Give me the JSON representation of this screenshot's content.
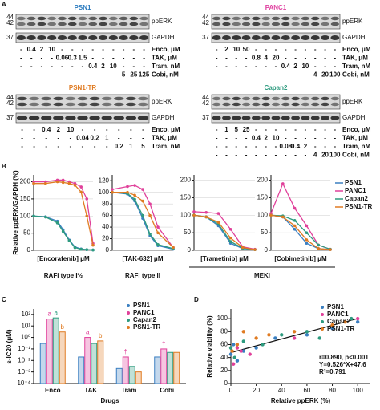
{
  "panel_labels": [
    "A",
    "B",
    "C",
    "D"
  ],
  "blots": [
    {
      "title": "PSN1",
      "color": "#2b7bbf",
      "markers_top": [
        "44",
        "42"
      ],
      "marker_bottom": "37",
      "bands": [
        "ppERK",
        "GAPDH"
      ],
      "rows": [
        {
          "label": "Enco, μM",
          "cells": [
            "-",
            "0.4",
            "2",
            "10",
            "-",
            "-",
            "-",
            "-",
            "-",
            "-",
            "-",
            "-",
            "-"
          ]
        },
        {
          "label": "TAK, μM",
          "cells": [
            "-",
            "-",
            "-",
            "-",
            "0.06",
            "0.3",
            "1.5",
            "-",
            "-",
            "-",
            "-",
            "-",
            "-"
          ]
        },
        {
          "label": "Tram, nM",
          "cells": [
            "-",
            "-",
            "-",
            "-",
            "-",
            "-",
            "-",
            "0.4",
            "2",
            "10",
            "-",
            "-",
            "-"
          ]
        },
        {
          "label": "Cobi, nM",
          "cells": [
            "-",
            "-",
            "-",
            "-",
            "-",
            "-",
            "-",
            "-",
            "-",
            "-",
            "5",
            "25",
            "125"
          ]
        }
      ]
    },
    {
      "title": "PANC1",
      "color": "#e040a0",
      "markers_top": [
        "44",
        "42"
      ],
      "marker_bottom": "37",
      "bands": [
        "ppERK",
        "GAPDH"
      ],
      "rows": [
        {
          "label": "Enco, μM",
          "cells": [
            "-",
            "2",
            "10",
            "50",
            "-",
            "-",
            "-",
            "-",
            "-",
            "-",
            "-",
            "-",
            "-"
          ]
        },
        {
          "label": "TAK, μM",
          "cells": [
            "-",
            "-",
            "-",
            "-",
            "0.8",
            "4",
            "20",
            "-",
            "-",
            "-",
            "-",
            "-",
            "-"
          ]
        },
        {
          "label": "Tram, nM",
          "cells": [
            "-",
            "-",
            "-",
            "-",
            "-",
            "-",
            "-",
            "0.4",
            "2",
            "10",
            "-",
            "-",
            "-"
          ]
        },
        {
          "label": "Cobi, nM",
          "cells": [
            "-",
            "-",
            "-",
            "-",
            "-",
            "-",
            "-",
            "-",
            "-",
            "-",
            "4",
            "20",
            "100"
          ]
        }
      ]
    },
    {
      "title": "PSN1-TR",
      "color": "#e07b22",
      "markers_top": [
        "44",
        "42"
      ],
      "marker_bottom": "37",
      "bands": [
        "ppERK",
        "GAPDH"
      ],
      "rows": [
        {
          "label": "Enco, μM",
          "cells": [
            "-",
            "-",
            "0.4",
            "2",
            "10",
            "-",
            "-",
            "-",
            "-",
            "-",
            "-"
          ]
        },
        {
          "label": "TAK, μM",
          "cells": [
            "-",
            "-",
            "-",
            "-",
            "-",
            "0.04",
            "0.2",
            "1",
            "-",
            "-",
            "-"
          ]
        },
        {
          "label": "Tram, nM",
          "cells": [
            "-",
            "-",
            "-",
            "-",
            "-",
            "-",
            "-",
            "-",
            "0.2",
            "1",
            "5"
          ]
        }
      ]
    },
    {
      "title": "Capan2",
      "color": "#2e9b7f",
      "markers_top": [
        "44",
        "42"
      ],
      "marker_bottom": "37",
      "bands": [
        "ppERK",
        "GAPDH"
      ],
      "rows": [
        {
          "label": "Enco, μM",
          "cells": [
            "-",
            "1",
            "5",
            "25",
            "-",
            "-",
            "-",
            "-",
            "-",
            "-",
            "-",
            "-",
            "-"
          ]
        },
        {
          "label": "TAK, μM",
          "cells": [
            "-",
            "-",
            "-",
            "-",
            "0.4",
            "2",
            "10",
            "-",
            "-",
            "-",
            "-",
            "-",
            "-"
          ]
        },
        {
          "label": "Tram, nM",
          "cells": [
            "-",
            "-",
            "-",
            "-",
            "-",
            "-",
            "-",
            "0.08",
            "0.4",
            "2",
            "-",
            "-",
            "-"
          ]
        },
        {
          "label": "Cobi, nM",
          "cells": [
            "-",
            "-",
            "-",
            "-",
            "-",
            "-",
            "-",
            "-",
            "-",
            "-",
            "4",
            "20",
            "100"
          ]
        }
      ]
    }
  ],
  "panel_b": {
    "ylabel": "Relative ppERK/GAPDH (%)",
    "groups": [
      "RAFi type I½",
      "RAFi type II",
      "MEKi"
    ]
  },
  "chart_data": [
    {
      "type": "line",
      "x_log": true,
      "xlabel": "[Encorafenib] μM",
      "xlim": [
        0.001,
        100
      ],
      "ylim": [
        0,
        220
      ],
      "yticks": [
        0,
        50,
        100,
        150,
        200
      ],
      "x": [
        0.001,
        0.01,
        0.1,
        0.3,
        1,
        3,
        10,
        30,
        100
      ],
      "series": [
        {
          "name": "PSN1",
          "color": "#3a7fc1",
          "values": [
            100,
            98,
            85,
            60,
            30,
            10,
            4,
            2,
            1
          ]
        },
        {
          "name": "PANC1",
          "color": "#e0409a",
          "values": [
            200,
            200,
            205,
            205,
            200,
            195,
            185,
            150,
            20
          ]
        },
        {
          "name": "Capan2",
          "color": "#2e9b7f",
          "values": [
            100,
            97,
            80,
            55,
            28,
            8,
            3,
            2,
            1
          ]
        },
        {
          "name": "PSN1-TR",
          "color": "#e07b22",
          "values": [
            195,
            195,
            200,
            198,
            195,
            190,
            170,
            100,
            15
          ]
        }
      ]
    },
    {
      "type": "line",
      "x_log": true,
      "xlabel": "[TAK-632] μM",
      "xlim": [
        0.001,
        10
      ],
      "ylim": [
        0,
        130
      ],
      "yticks": [
        0,
        20,
        40,
        60,
        80,
        100,
        120
      ],
      "x": [
        0.001,
        0.01,
        0.03,
        0.1,
        0.3,
        1,
        10
      ],
      "series": [
        {
          "name": "PSN1",
          "color": "#3a7fc1",
          "values": [
            100,
            97,
            85,
            55,
            25,
            8,
            2
          ]
        },
        {
          "name": "PANC1",
          "color": "#e0409a",
          "values": [
            105,
            110,
            112,
            105,
            80,
            40,
            5
          ]
        },
        {
          "name": "Capan2",
          "color": "#2e9b7f",
          "values": [
            100,
            98,
            88,
            60,
            28,
            10,
            3
          ]
        },
        {
          "name": "PSN1-TR",
          "color": "#e07b22",
          "values": [
            100,
            100,
            95,
            85,
            60,
            30,
            5
          ]
        }
      ]
    },
    {
      "type": "line",
      "x_log": true,
      "xlabel": "[Trametinib] μM",
      "xlim": [
        0.0001,
        10
      ],
      "ylim": [
        0,
        215
      ],
      "yticks": [
        0,
        50,
        100,
        150,
        200
      ],
      "x": [
        0.0001,
        0.001,
        0.01,
        0.1,
        1,
        10
      ],
      "series": [
        {
          "name": "PSN1",
          "color": "#3a7fc1",
          "values": [
            100,
            95,
            70,
            20,
            5,
            2
          ]
        },
        {
          "name": "PANC1",
          "color": "#e0409a",
          "values": [
            110,
            108,
            105,
            60,
            10,
            3
          ]
        },
        {
          "name": "Capan2",
          "color": "#2e9b7f",
          "values": [
            100,
            95,
            75,
            25,
            6,
            2
          ]
        },
        {
          "name": "PSN1-TR",
          "color": "#e07b22",
          "values": [
            100,
            95,
            80,
            35,
            8,
            2
          ]
        }
      ]
    },
    {
      "type": "line",
      "x_log": true,
      "xlabel": "[Cobimetinib] μM",
      "xlim": [
        0.001,
        100
      ],
      "ylim": [
        0,
        215
      ],
      "yticks": [
        0,
        50,
        100,
        150,
        200
      ],
      "x": [
        0.001,
        0.01,
        0.1,
        1,
        10,
        100
      ],
      "series": [
        {
          "name": "PSN1",
          "color": "#3a7fc1",
          "values": [
            100,
            95,
            60,
            20,
            5,
            2
          ]
        },
        {
          "name": "PANC1",
          "color": "#e0409a",
          "values": [
            105,
            190,
            120,
            70,
            15,
            3
          ]
        },
        {
          "name": "Capan2",
          "color": "#2e9b7f",
          "values": [
            100,
            98,
            85,
            50,
            15,
            3
          ]
        },
        {
          "name": "PSN1-TR",
          "color": "#e07b22",
          "values": [
            100,
            95,
            70,
            30,
            5,
            2
          ]
        }
      ]
    },
    {
      "type": "bar",
      "log_y": true,
      "ylabel": "s-IC20 (μM)",
      "xlabel": "Drugs",
      "categories": [
        "Enco",
        "TAK",
        "Tram",
        "Cobi"
      ],
      "ylim": [
        0.0001,
        300
      ],
      "yticks": [
        {
          "value": 100,
          "label": "10²"
        },
        {
          "value": 10,
          "label": "10¹"
        },
        {
          "value": 1,
          "label": "10⁰"
        },
        {
          "value": 0.1,
          "label": "10⁻¹"
        },
        {
          "value": 0.01,
          "label": "10⁻²"
        },
        {
          "value": 0.001,
          "label": "10⁻³"
        },
        {
          "value": 0.0001,
          "label": "10⁻⁴"
        }
      ],
      "series": [
        {
          "name": "PSN1",
          "color": "#3a7fc1",
          "values": [
            0.3,
            0.02,
            0.002,
            0.02
          ],
          "annotations": [
            null,
            null,
            null,
            null
          ]
        },
        {
          "name": "PANC1",
          "color": "#e0409a",
          "values": [
            40,
            1,
            0.02,
            0.1
          ],
          "annotations": [
            "a",
            "a",
            "†",
            "†"
          ]
        },
        {
          "name": "Capan2",
          "color": "#2e9b7f",
          "values": [
            50,
            0.3,
            0.003,
            0.05
          ],
          "annotations": [
            "a",
            null,
            null,
            null
          ]
        },
        {
          "name": "PSN1-TR",
          "color": "#e07b22",
          "values": [
            3,
            0.5,
            0.001,
            0.05
          ],
          "annotations": [
            "b",
            "b",
            null,
            null
          ]
        }
      ]
    },
    {
      "type": "scatter",
      "xlabel": "Relative ppERK (%)",
      "ylabel": "Relative viability (%)",
      "xlim": [
        0,
        110
      ],
      "ylim": [
        0,
        115
      ],
      "xticks": [
        0,
        20,
        40,
        60,
        80,
        100
      ],
      "yticks": [
        0,
        20,
        40,
        60,
        80,
        100
      ],
      "stats": [
        "r=0.890, p<0.001",
        "Y=0.526*X+47.6",
        "R²=0.791"
      ],
      "fit": {
        "slope": 0.526,
        "intercept": 47.6
      },
      "series": [
        {
          "name": "PSN1",
          "color": "#3a7fc1",
          "x": [
            0,
            2,
            5,
            10,
            20,
            35,
            60,
            80,
            100
          ],
          "values": [
            45,
            60,
            35,
            50,
            55,
            70,
            75,
            85,
            95
          ]
        },
        {
          "name": "PANC1",
          "color": "#e0409a",
          "x": [
            2,
            5,
            8,
            15,
            50,
            100
          ],
          "values": [
            30,
            55,
            50,
            45,
            70,
            100
          ]
        },
        {
          "name": "Capan2",
          "color": "#2e9b7f",
          "x": [
            0,
            3,
            10,
            25,
            40,
            60,
            70,
            95
          ],
          "values": [
            55,
            40,
            65,
            60,
            75,
            80,
            70,
            100
          ]
        },
        {
          "name": "PSN1-TR",
          "color": "#e07b22",
          "x": [
            1,
            5,
            10,
            20,
            30,
            50,
            80,
            90
          ],
          "values": [
            50,
            60,
            80,
            70,
            75,
            80,
            90,
            95
          ]
        }
      ]
    }
  ]
}
